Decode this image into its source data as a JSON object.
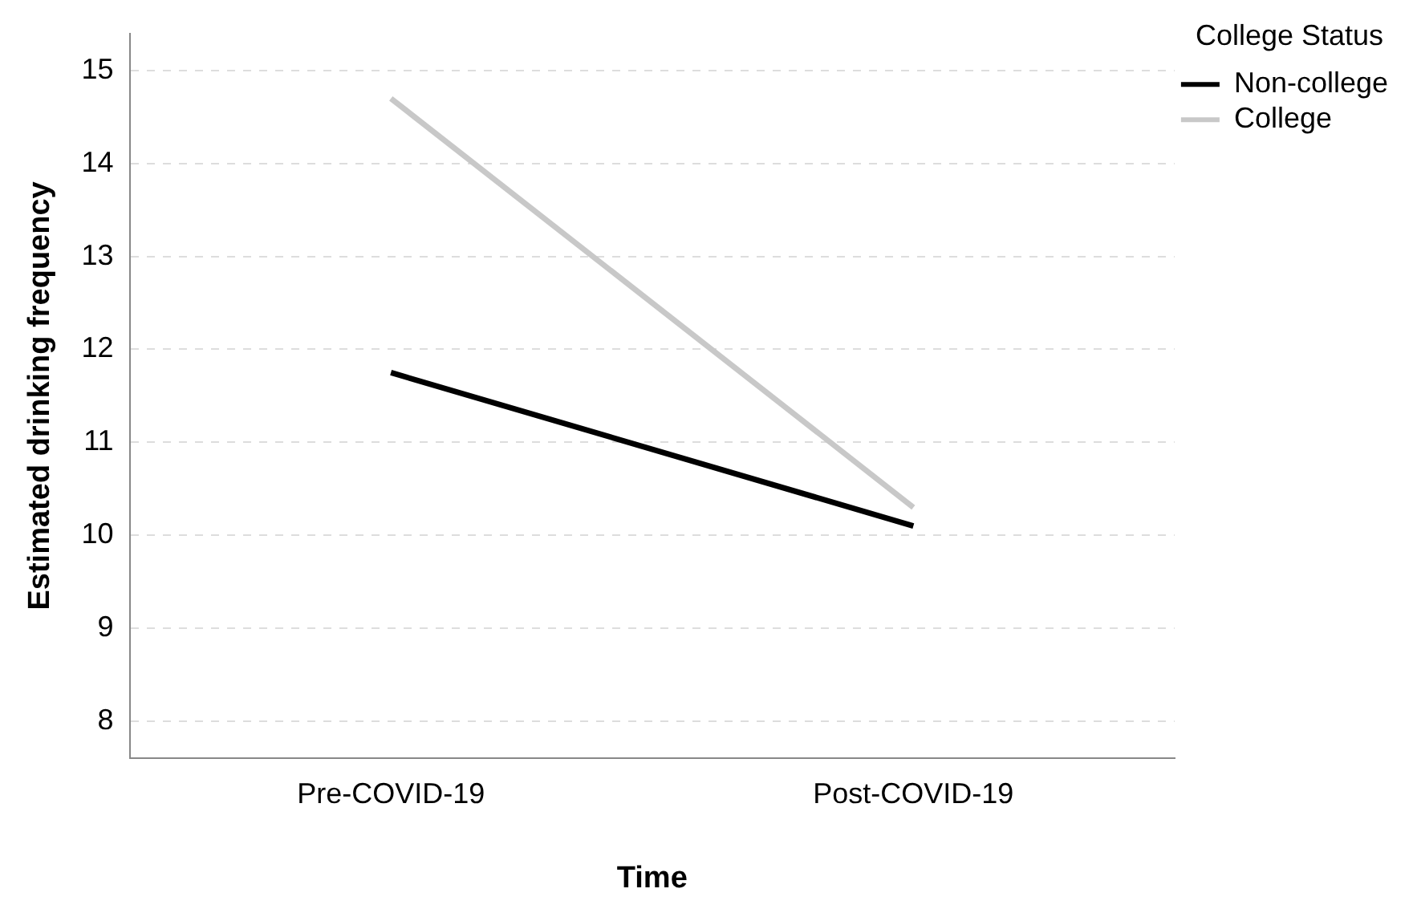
{
  "chart_data": {
    "type": "line",
    "xlabel": "Time",
    "ylabel": "Estimated drinking frequency",
    "legend_title": "College Status",
    "categories": [
      "Pre-COVID-19",
      "Post-COVID-19"
    ],
    "series": [
      {
        "name": "Non-college",
        "color": "#000000",
        "values": [
          11.75,
          10.1
        ]
      },
      {
        "name": "College",
        "color": "#c8c8c8",
        "values": [
          14.7,
          10.3
        ]
      }
    ],
    "ylim": [
      7.6,
      15.4
    ],
    "yticks": [
      8,
      9,
      10,
      11,
      12,
      13,
      14,
      15
    ],
    "grid": "y",
    "legend": "top right",
    "marker": "none",
    "line_style": "solid"
  }
}
